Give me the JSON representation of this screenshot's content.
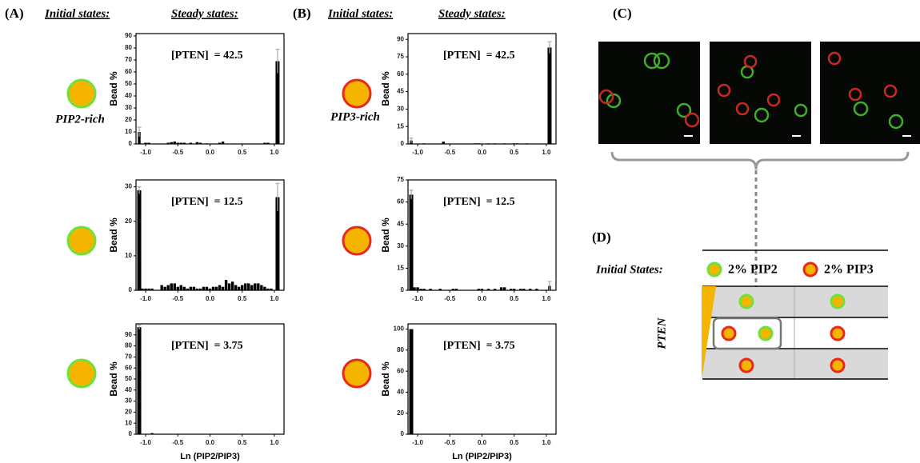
{
  "panels": {
    "A": {
      "label": "(A)",
      "initial": "Initial states:",
      "steady": "Steady states:",
      "state_label": "PIP2-rich"
    },
    "B": {
      "label": "(B)",
      "initial": "Initial states:",
      "steady": "Steady states:",
      "state_label": "PIP3-rich"
    },
    "C": {
      "label": "(C)"
    },
    "D": {
      "label": "(D)",
      "initial": "Initial States:",
      "col1": "2% PIP2",
      "col2": "2% PIP3",
      "row_axis": "PTEN"
    }
  },
  "chart_data": [
    {
      "type": "bar",
      "annotation": "[PTEN]  = 42.5",
      "ylabel": "Bead %",
      "color": "#000000",
      "error_color": "#aaaaaa",
      "x": [
        -1.1,
        -1.0,
        -0.95,
        -0.65,
        -0.6,
        -0.55,
        -0.5,
        -0.45,
        -0.4,
        -0.3,
        -0.2,
        -0.15,
        -0.05,
        0.15,
        0.2,
        0.85,
        0.9,
        1.05
      ],
      "values": [
        10,
        1,
        1,
        1,
        1.5,
        2,
        1,
        1,
        1,
        1,
        1.5,
        1,
        0.5,
        1,
        2,
        1,
        1,
        69
      ],
      "errors": [
        4,
        null,
        null,
        null,
        null,
        null,
        null,
        null,
        null,
        null,
        null,
        null,
        null,
        null,
        null,
        null,
        null,
        10
      ],
      "xlim": [
        -1.15,
        1.15
      ],
      "xticks": [
        {
          "value": -1,
          "label": "-1.0"
        },
        {
          "value": -0.5,
          "label": "-0.5"
        },
        {
          "value": 0,
          "label": "0.0"
        },
        {
          "value": 0.5,
          "label": "0.5"
        },
        {
          "value": 1,
          "label": "1.0"
        }
      ],
      "ylim": [
        0,
        92
      ],
      "yticks": [
        0,
        10,
        20,
        30,
        40,
        50,
        60,
        70,
        80,
        90
      ]
    },
    {
      "type": "bar",
      "annotation": "[PTEN]  = 12.5",
      "ylabel": "Bead %",
      "color": "#000000",
      "error_color": "#aaaaaa",
      "x": [
        -1.1,
        -1.05,
        -1.0,
        -0.95,
        -0.9,
        -0.75,
        -0.7,
        -0.65,
        -0.6,
        -0.55,
        -0.5,
        -0.45,
        -0.4,
        -0.35,
        -0.3,
        -0.25,
        -0.2,
        -0.15,
        -0.1,
        -0.05,
        0,
        0.05,
        0.1,
        0.15,
        0.2,
        0.25,
        0.3,
        0.35,
        0.4,
        0.45,
        0.5,
        0.55,
        0.6,
        0.65,
        0.7,
        0.75,
        0.8,
        0.85,
        0.9,
        0.95,
        1.05
      ],
      "values": [
        29,
        0.5,
        0.5,
        0.5,
        0.5,
        1.5,
        1,
        1.5,
        2,
        2,
        1,
        1.5,
        1,
        0.5,
        1,
        1,
        0.5,
        0.5,
        1,
        1,
        0.5,
        1,
        1,
        1.5,
        1,
        3,
        2,
        2.5,
        1.5,
        1,
        1.5,
        2,
        2,
        1.5,
        2,
        2,
        1.5,
        1,
        0.5,
        0.5,
        27
      ],
      "errors": [
        1,
        null,
        null,
        null,
        null,
        null,
        null,
        null,
        null,
        null,
        null,
        null,
        null,
        null,
        null,
        null,
        null,
        null,
        null,
        null,
        null,
        null,
        null,
        null,
        null,
        null,
        null,
        null,
        null,
        null,
        null,
        null,
        null,
        null,
        null,
        null,
        null,
        null,
        null,
        null,
        4
      ],
      "xlim": [
        -1.15,
        1.15
      ],
      "xticks": [
        {
          "value": -1,
          "label": "-1.0"
        },
        {
          "value": -0.5,
          "label": "-0.5"
        },
        {
          "value": 0,
          "label": "0.0"
        },
        {
          "value": 0.5,
          "label": "0.5"
        },
        {
          "value": 1,
          "label": "1.0"
        }
      ],
      "ylim": [
        0,
        32
      ],
      "yticks": [
        0,
        10,
        20,
        30
      ]
    },
    {
      "type": "bar",
      "annotation": "[PTEN]  = 3.75",
      "ylabel": "Bead %",
      "xlabel": "Ln (PIP2/PIP3)",
      "color": "#000000",
      "error_color": "#aaaaaa",
      "x": [
        -1.1,
        -0.9
      ],
      "values": [
        97,
        1
      ],
      "errors": [
        2,
        null
      ],
      "xlim": [
        -1.15,
        1.15
      ],
      "xticks": [
        {
          "value": -1,
          "label": "-1.0"
        },
        {
          "value": -0.5,
          "label": "-0.5"
        },
        {
          "value": 0,
          "label": "0.0"
        },
        {
          "value": 0.5,
          "label": "0.5"
        },
        {
          "value": 1,
          "label": "1.0"
        }
      ],
      "ylim": [
        0,
        100
      ],
      "yticks": [
        0,
        10,
        20,
        30,
        40,
        50,
        60,
        70,
        80,
        90
      ]
    },
    {
      "type": "bar",
      "annotation": "[PTEN]  = 42.5",
      "ylabel": "Bead %",
      "color": "#000000",
      "error_color": "#aaaaaa",
      "x": [
        -1.1,
        -0.9,
        -0.6,
        -0.1,
        -0.05,
        0.1,
        0.2,
        0.35,
        0.5,
        0.55,
        0.7,
        1.05
      ],
      "values": [
        3,
        0.5,
        2,
        0.5,
        0.5,
        0.5,
        0.5,
        0.5,
        0.5,
        0.5,
        0.5,
        83
      ],
      "errors": [
        2,
        null,
        null,
        null,
        null,
        null,
        null,
        null,
        null,
        null,
        null,
        5
      ],
      "xlim": [
        -1.15,
        1.15
      ],
      "xticks": [
        {
          "value": -1,
          "label": "-1.0"
        },
        {
          "value": -0.5,
          "label": "-0.5"
        },
        {
          "value": 0,
          "label": "0.0"
        },
        {
          "value": 0.5,
          "label": "0.5"
        },
        {
          "value": 1,
          "label": "1.0"
        }
      ],
      "ylim": [
        0,
        95
      ],
      "yticks": [
        0,
        15,
        30,
        45,
        60,
        75,
        90
      ]
    },
    {
      "type": "bar",
      "annotation": "[PTEN]  = 12.5",
      "ylabel": "Bead %",
      "color": "#000000",
      "error_color": "#aaaaaa",
      "x": [
        -1.1,
        -1.05,
        -1.0,
        -0.95,
        -0.9,
        -0.8,
        -0.65,
        -0.45,
        -0.4,
        -0.05,
        0.0,
        0.1,
        0.2,
        0.3,
        0.35,
        0.45,
        0.5,
        0.6,
        0.65,
        0.75,
        0.85,
        1.05
      ],
      "values": [
        65,
        2,
        2,
        1,
        1,
        1,
        1,
        1,
        1,
        1,
        1,
        1,
        1,
        2,
        2,
        1,
        1,
        1,
        1,
        1,
        1,
        3
      ],
      "errors": [
        3,
        null,
        null,
        null,
        null,
        null,
        null,
        null,
        null,
        null,
        null,
        null,
        null,
        null,
        null,
        null,
        null,
        null,
        null,
        null,
        null,
        3
      ],
      "xlim": [
        -1.15,
        1.15
      ],
      "xticks": [
        {
          "value": -1,
          "label": "-1.0"
        },
        {
          "value": -0.5,
          "label": "-0.5"
        },
        {
          "value": 0,
          "label": "0.0"
        },
        {
          "value": 0.5,
          "label": "0.5"
        },
        {
          "value": 1,
          "label": "1.0"
        }
      ],
      "ylim": [
        0,
        75
      ],
      "yticks": [
        0,
        15,
        30,
        45,
        60,
        75
      ]
    },
    {
      "type": "bar",
      "annotation": "[PTEN]  = 3.75",
      "ylabel": "Bead %",
      "xlabel": "Ln (PIP2/PIP3)",
      "color": "#000000",
      "error_color": "#aaaaaa",
      "x": [
        -1.1
      ],
      "values": [
        100
      ],
      "errors": [
        null
      ],
      "xlim": [
        -1.15,
        1.15
      ],
      "xticks": [
        {
          "value": -1,
          "label": "-1.0"
        },
        {
          "value": -0.5,
          "label": "-0.5"
        },
        {
          "value": 0,
          "label": "0.0"
        },
        {
          "value": 0.5,
          "label": "0.5"
        },
        {
          "value": 1,
          "label": "1.0"
        }
      ],
      "ylim": [
        0,
        105
      ],
      "yticks": [
        0,
        20,
        40,
        60,
        80,
        100
      ]
    }
  ]
}
